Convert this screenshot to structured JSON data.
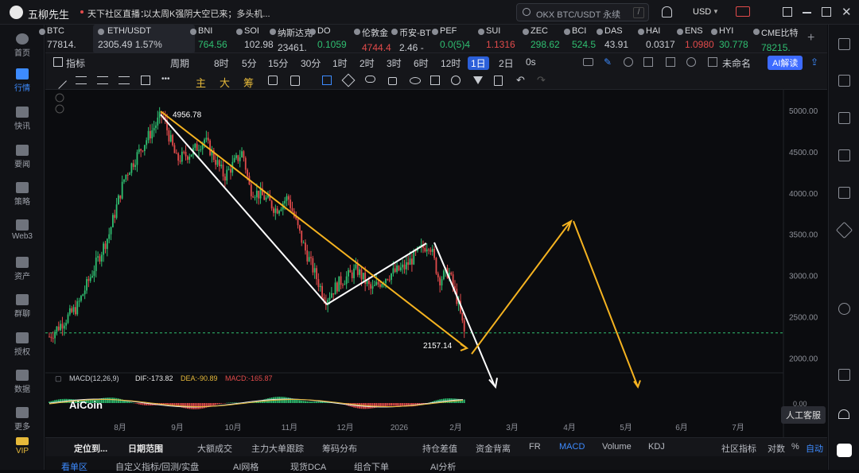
{
  "app": {
    "title": "五柳先生",
    "broadcast_label": "天下社区直播：",
    "broadcast_text": "以太周K强阴大空已来；多头机...",
    "search_placeholder": "OKX BTC/USDT 永续",
    "search_shortcut": "/",
    "currency": "USD"
  },
  "leftnav": [
    {
      "label": "首页"
    },
    {
      "label": "行情"
    },
    {
      "label": "快讯"
    },
    {
      "label": "要闻"
    },
    {
      "label": "策略"
    },
    {
      "label": "Web3"
    },
    {
      "label": "资产"
    },
    {
      "label": "群聊"
    },
    {
      "label": "授权"
    },
    {
      "label": "数据"
    },
    {
      "label": "更多"
    },
    {
      "label": "VIP"
    }
  ],
  "tickers": [
    {
      "name": "BTC",
      "price": "77814.",
      "color": "#c9ccd2"
    },
    {
      "name": "ETH/USDT",
      "price": "2305.49  1.57%",
      "color": "#c9ccd2"
    },
    {
      "name": "BNI",
      "price": "764.56",
      "color": "#2fbf71"
    },
    {
      "name": "SOI",
      "price": "102.98",
      "color": "#c9ccd2"
    },
    {
      "name": "纳斯达克",
      "price": "23461.",
      "color": "#c9ccd2"
    },
    {
      "name": "DO",
      "price": "0.1059",
      "color": "#2fbf71"
    },
    {
      "name": "伦敦金",
      "price": "4744.4",
      "color": "#e24b4b"
    },
    {
      "name": "币安-BT",
      "price": "2.46  -",
      "color": "#c9ccd2"
    },
    {
      "name": "PEF",
      "price": "0.0(5)4",
      "color": "#2fbf71"
    },
    {
      "name": "SUI",
      "price": "1.1316",
      "color": "#e24b4b"
    },
    {
      "name": "ZEC",
      "price": "298.62",
      "color": "#2fbf71"
    },
    {
      "name": "BCI",
      "price": "524.5",
      "color": "#2fbf71"
    },
    {
      "name": "DAS",
      "price": "43.91",
      "color": "#c9ccd2"
    },
    {
      "name": "HAI",
      "price": "0.0317",
      "color": "#c9ccd2"
    },
    {
      "name": "ENS",
      "price": "1.0980",
      "color": "#e24b4b"
    },
    {
      "name": "HYI",
      "price": "30.778",
      "color": "#2fbf71"
    },
    {
      "name": "CME比特",
      "price": "78215.",
      "color": "#2fbf71"
    }
  ],
  "toolbar": {
    "indicators": "指标",
    "period": "周期",
    "intervals": [
      "8时",
      "5分",
      "15分",
      "30分",
      "1时",
      "2时",
      "3时",
      "6时",
      "12时",
      "1日",
      "2日",
      "0s"
    ],
    "active_interval": "1日",
    "unnamed": "未命名",
    "ai_button": "AI解读"
  },
  "drawbar": {
    "a": "主",
    "b": "大",
    "c": "筹"
  },
  "chart_data": {
    "type": "candlestick",
    "symbol": "ETH/USDT",
    "y_ticks": [
      "5000.00",
      "4500.00",
      "4000.00",
      "3500.00",
      "3000.00",
      "2500.00",
      "2000.00"
    ],
    "x_ticks": [
      "8月",
      "9月",
      "10月",
      "11月",
      "12月",
      "2026",
      "2月",
      "3月",
      "4月",
      "5月",
      "6月",
      "7月"
    ],
    "ylim": [
      1850,
      5250
    ],
    "high_label": "4956.78",
    "low_label": "2157.14",
    "current_price": 2305.49,
    "macd_label": "MACD(12,26,9)",
    "macd_dif": "DIF:-173.82",
    "macd_dea": "DEA:-90.89",
    "macd_val": "MACD:-165.87",
    "macd_zero": "0.00",
    "watermark": "AiCoin",
    "colors": {
      "up": "#2fbf71",
      "down": "#e24b4b",
      "projection": "#f5b320"
    }
  },
  "right_tip": "人工客服",
  "bottom_tabs": [
    "定位到...",
    "日期范围",
    "大额成交",
    "主力大单跟踪",
    "筹码分布",
    "持仓差值",
    "资金背离",
    "FR",
    "MACD",
    "Volume",
    "KDJ",
    "社区指标",
    "对数",
    "%",
    "自动"
  ],
  "bottom_tabs2": [
    "看单区",
    "自定义指标/回测/实盘",
    "AI网格",
    "现货DCA",
    "组合下单",
    "AI分析"
  ]
}
